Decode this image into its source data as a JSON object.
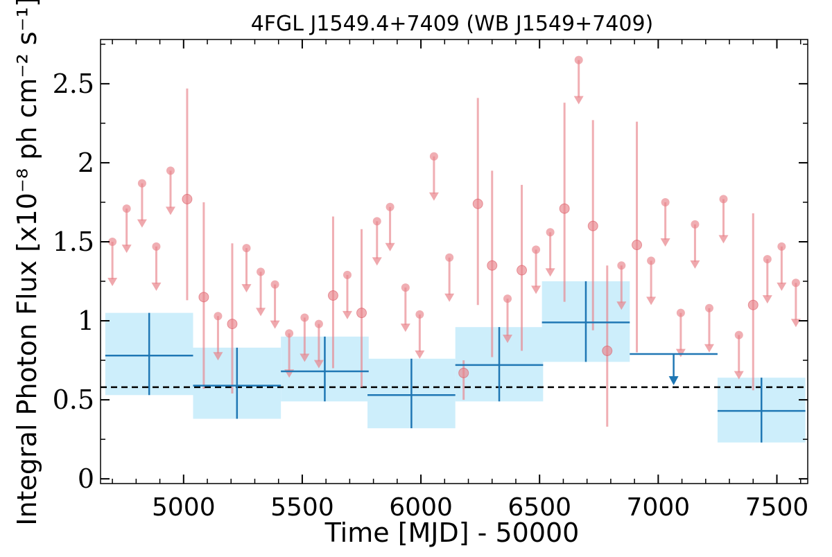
{
  "chart_data": {
    "type": "scatter",
    "title": "4FGL J1549.4+7409 (WB J1549+7409)",
    "xlabel": "Time [MJD] - 50000",
    "ylabel": "Integral Photon Flux [x10⁻⁸ ph cm⁻² s⁻¹]",
    "xlim": [
      4650,
      7630
    ],
    "ylim": [
      -0.03,
      2.78
    ],
    "xticks": [
      5000,
      5500,
      6000,
      6500,
      7000,
      7500
    ],
    "xtick_labels": [
      "5000",
      "5500",
      "6000",
      "6500",
      "7000",
      "7500"
    ],
    "yticks": [
      0,
      0.5,
      1,
      1.5,
      2,
      2.5
    ],
    "ytick_labels": [
      "0",
      "0.5",
      "1",
      "1.5",
      "2",
      "2.5"
    ],
    "xminor_step": 100,
    "yminor_step": 0.25,
    "grid": false,
    "mean_line": 0.58,
    "colors": {
      "fine": "#e8838a",
      "coarse": "#1f77b4",
      "band": "#cdeefb",
      "mean": "#000000"
    },
    "coarse_bins": [
      {
        "x": 4855,
        "xerr": 185,
        "y": 0.78,
        "lo": 0.53,
        "hi": 1.05,
        "ul": false
      },
      {
        "x": 5225,
        "xerr": 185,
        "y": 0.59,
        "lo": 0.38,
        "hi": 0.83,
        "ul": false
      },
      {
        "x": 5595,
        "xerr": 185,
        "y": 0.68,
        "lo": 0.49,
        "hi": 0.9,
        "ul": false
      },
      {
        "x": 5960,
        "xerr": 185,
        "y": 0.53,
        "lo": 0.32,
        "hi": 0.76,
        "ul": false
      },
      {
        "x": 6330,
        "xerr": 185,
        "y": 0.72,
        "lo": 0.49,
        "hi": 0.96,
        "ul": false
      },
      {
        "x": 6695,
        "xerr": 185,
        "y": 0.99,
        "lo": 0.74,
        "hi": 1.25,
        "ul": false
      },
      {
        "x": 7065,
        "xerr": 185,
        "y": 0.79,
        "ul": true
      },
      {
        "x": 7435,
        "xerr": 185,
        "y": 0.43,
        "lo": 0.23,
        "hi": 0.64,
        "ul": false
      }
    ],
    "fine_detections": [
      {
        "x": 5015,
        "y": 1.77,
        "lo": 1.13,
        "hi": 2.47
      },
      {
        "x": 5085,
        "y": 1.15,
        "lo": 0.57,
        "hi": 1.75
      },
      {
        "x": 5205,
        "y": 0.98,
        "lo": 0.54,
        "hi": 1.49
      },
      {
        "x": 5630,
        "y": 1.16,
        "lo": 0.7,
        "hi": 1.66
      },
      {
        "x": 5750,
        "y": 1.05,
        "lo": 0.58,
        "hi": 1.58
      },
      {
        "x": 6180,
        "y": 0.67,
        "lo": 0.5,
        "hi": 0.75
      },
      {
        "x": 6240,
        "y": 1.74,
        "lo": 1.1,
        "hi": 2.41
      },
      {
        "x": 6300,
        "y": 1.35,
        "lo": 0.77,
        "hi": 1.95
      },
      {
        "x": 6425,
        "y": 1.32,
        "lo": 0.81,
        "hi": 1.86
      },
      {
        "x": 6605,
        "y": 1.71,
        "lo": 1.12,
        "hi": 2.38
      },
      {
        "x": 6725,
        "y": 1.6,
        "lo": 0.94,
        "hi": 2.27
      },
      {
        "x": 6785,
        "y": 0.81,
        "lo": 0.33,
        "hi": 1.35
      },
      {
        "x": 6910,
        "y": 1.48,
        "lo": 0.8,
        "hi": 2.26
      },
      {
        "x": 7400,
        "y": 1.1,
        "lo": 0.56,
        "hi": 1.68
      }
    ],
    "fine_upper_limits": [
      {
        "x": 4700,
        "y": 1.5
      },
      {
        "x": 4760,
        "y": 1.71
      },
      {
        "x": 4825,
        "y": 1.87
      },
      {
        "x": 4885,
        "y": 1.47
      },
      {
        "x": 4945,
        "y": 1.95
      },
      {
        "x": 5145,
        "y": 1.03
      },
      {
        "x": 5265,
        "y": 1.46
      },
      {
        "x": 5325,
        "y": 1.31
      },
      {
        "x": 5385,
        "y": 1.23
      },
      {
        "x": 5445,
        "y": 0.92
      },
      {
        "x": 5510,
        "y": 1.02
      },
      {
        "x": 5570,
        "y": 0.98
      },
      {
        "x": 5690,
        "y": 1.29
      },
      {
        "x": 5815,
        "y": 1.63
      },
      {
        "x": 5870,
        "y": 1.72
      },
      {
        "x": 5935,
        "y": 1.21
      },
      {
        "x": 5995,
        "y": 1.04
      },
      {
        "x": 6055,
        "y": 2.04
      },
      {
        "x": 6120,
        "y": 1.4
      },
      {
        "x": 6365,
        "y": 1.14
      },
      {
        "x": 6485,
        "y": 1.45
      },
      {
        "x": 6545,
        "y": 1.56
      },
      {
        "x": 6665,
        "y": 2.65
      },
      {
        "x": 6845,
        "y": 1.35
      },
      {
        "x": 6970,
        "y": 1.38
      },
      {
        "x": 7030,
        "y": 1.75
      },
      {
        "x": 7095,
        "y": 1.05
      },
      {
        "x": 7155,
        "y": 1.61
      },
      {
        "x": 7215,
        "y": 1.08
      },
      {
        "x": 7275,
        "y": 1.77
      },
      {
        "x": 7340,
        "y": 0.91
      },
      {
        "x": 7460,
        "y": 1.39
      },
      {
        "x": 7520,
        "y": 1.47
      },
      {
        "x": 7580,
        "y": 1.24
      }
    ]
  }
}
